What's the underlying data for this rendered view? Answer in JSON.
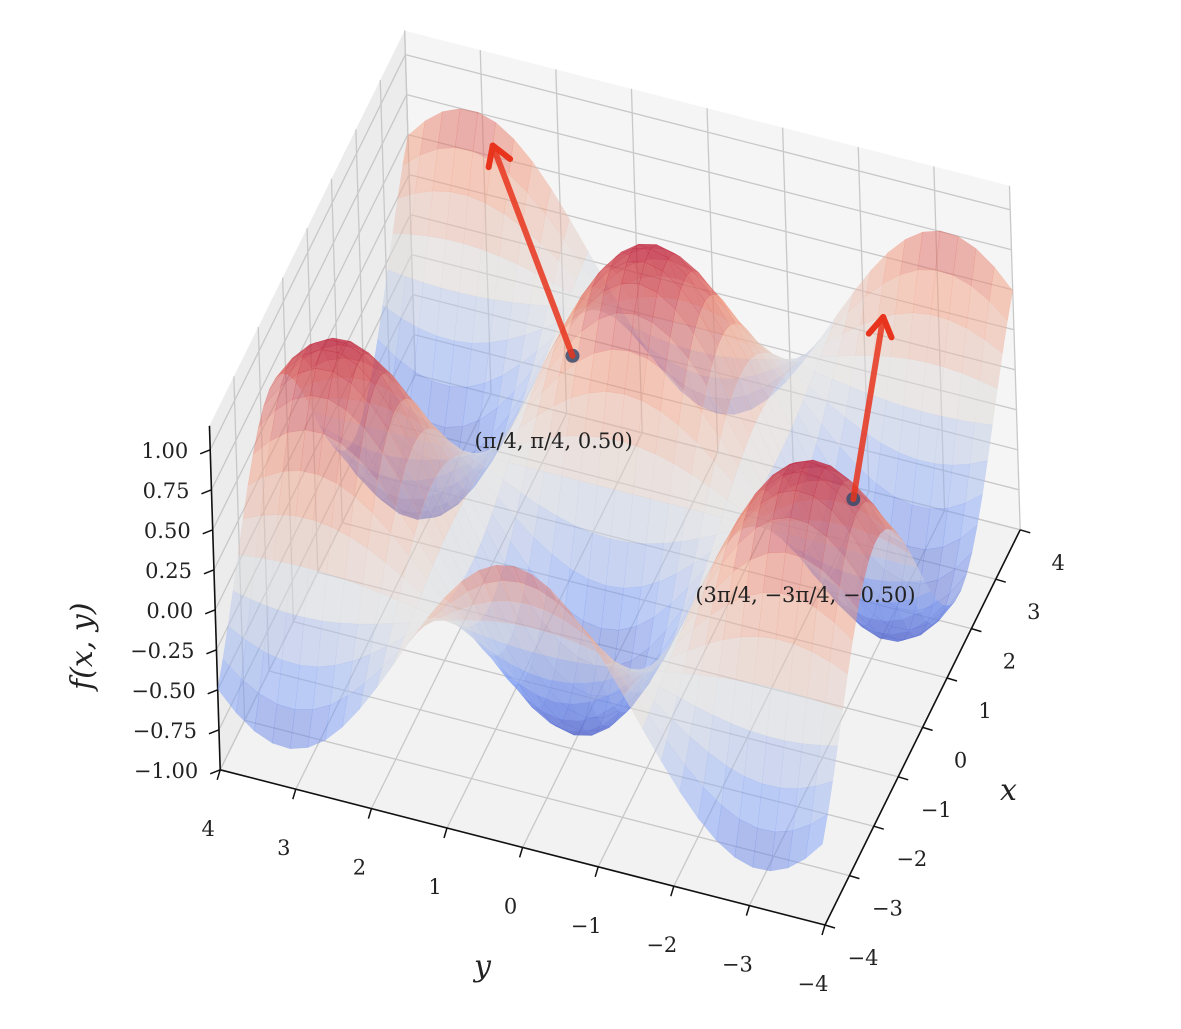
{
  "chart_data": {
    "type": "surface3d",
    "title": "",
    "xlabel": "x",
    "ylabel": "y",
    "zlabel": "f(x, y)",
    "surface": {
      "function": "sin(x)*cos(y)",
      "xlim": [
        -4,
        4
      ],
      "ylim": [
        -4,
        4
      ],
      "zlim": [
        -1,
        1.15
      ],
      "colormap": "coolwarm",
      "alpha": 0.5
    },
    "x_ticks": [
      "−4",
      "−3",
      "−2",
      "−1",
      "0",
      "1",
      "2",
      "3",
      "4"
    ],
    "x_tick_values": [
      -4,
      -3,
      -2,
      -1,
      0,
      1,
      2,
      3,
      4
    ],
    "y_ticks": [
      "−4",
      "−3",
      "−2",
      "−1",
      "0",
      "1",
      "2",
      "3",
      "4"
    ],
    "y_tick_values": [
      -4,
      -3,
      -2,
      -1,
      0,
      1,
      2,
      3,
      4
    ],
    "z_ticks": [
      "−1.00",
      "−0.75",
      "−0.50",
      "−0.25",
      "0.00",
      "0.25",
      "0.50",
      "0.75",
      "1.00"
    ],
    "z_tick_values": [
      -1,
      -0.75,
      -0.5,
      -0.25,
      0,
      0.25,
      0.5,
      0.75,
      1
    ],
    "points": [
      {
        "label": "(π/4, π/4, 0.50)",
        "x": 0.7854,
        "y": 0.7854,
        "z": 0.5,
        "normal": [
          -0.5,
          0.5,
          1
        ]
      },
      {
        "label": "(3π/4, −3π/4, −0.50)",
        "x": 2.3562,
        "y": -2.3562,
        "z": -0.5,
        "normal": [
          -0.5,
          -0.5,
          1
        ]
      }
    ],
    "colors": {
      "arrow": "#e8341c",
      "point": "#3a4a6b",
      "pane": "#f2f2f2",
      "grid": "#c8c8c8",
      "axis": "#111111"
    },
    "grid": true
  }
}
